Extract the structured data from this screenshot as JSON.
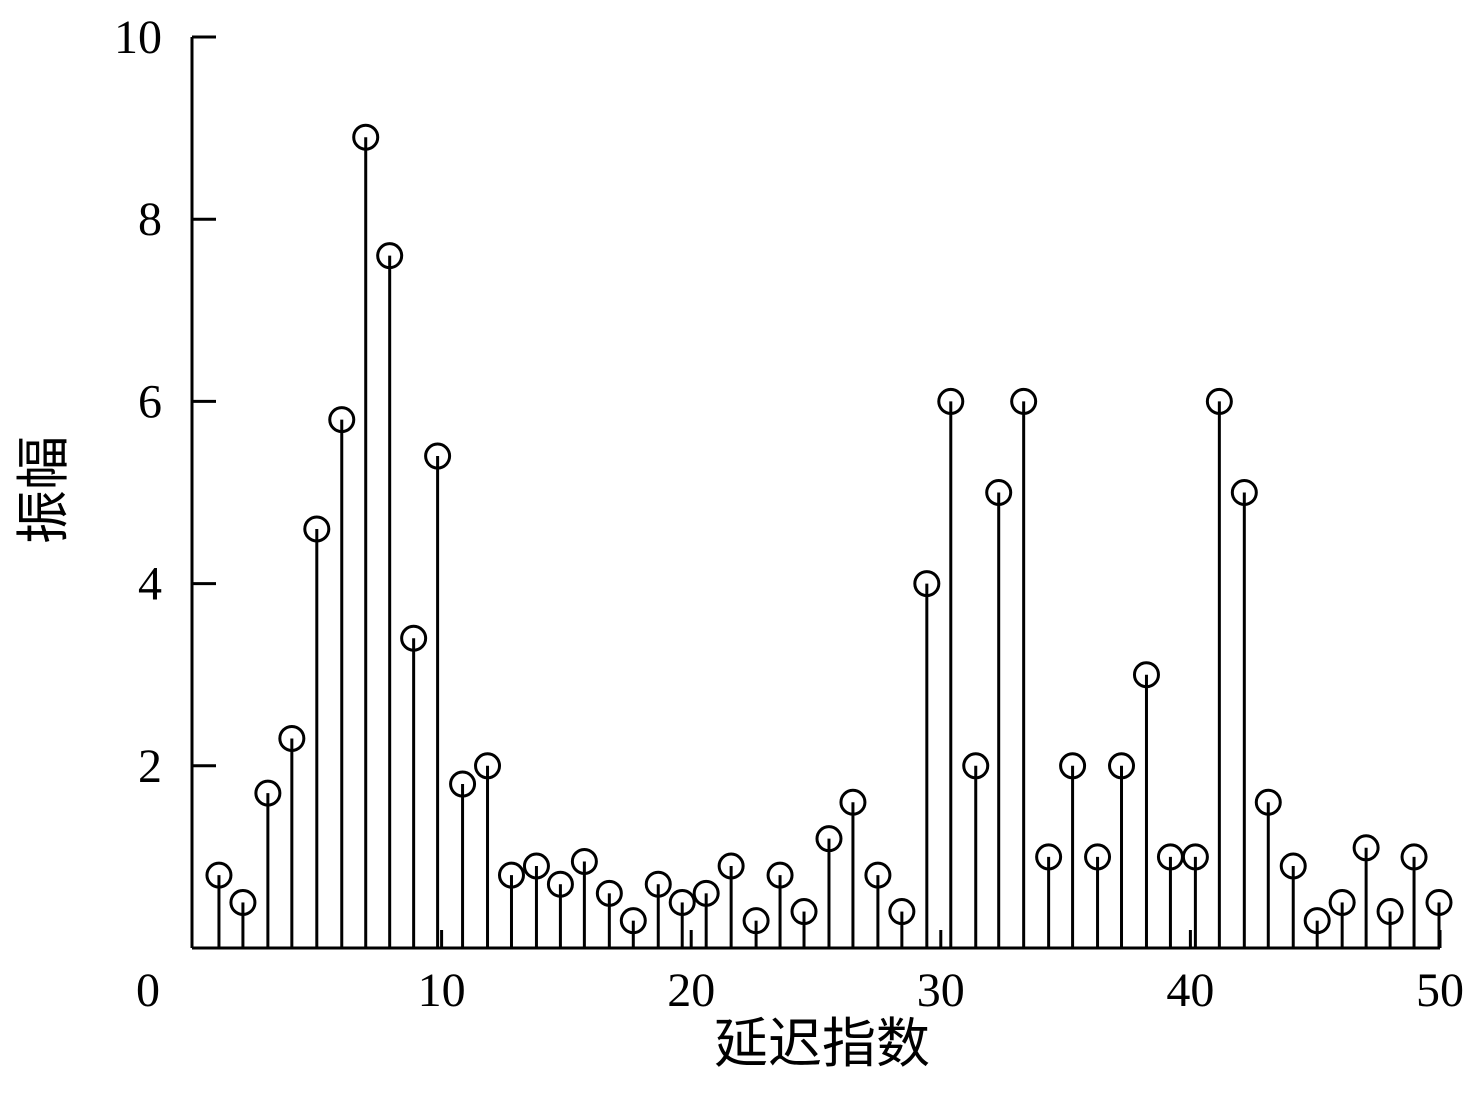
{
  "chart_data": {
    "type": "stem",
    "x_label": "延迟指数",
    "y_label": "振幅",
    "color": "#000000",
    "xlim": [
      0,
      50
    ],
    "ylim": [
      0,
      10
    ],
    "xticks": [
      10,
      20,
      30,
      40,
      50
    ],
    "yticks": [
      0,
      2,
      4,
      6,
      8,
      10
    ],
    "x": [
      1.08,
      2.04,
      3.04,
      4.0,
      5.0,
      6.0,
      6.96,
      7.92,
      8.88,
      9.84,
      10.84,
      11.84,
      12.8,
      13.8,
      14.76,
      15.72,
      16.72,
      17.68,
      18.68,
      19.64,
      20.6,
      21.6,
      22.6,
      23.56,
      24.52,
      25.52,
      26.48,
      27.48,
      28.44,
      29.44,
      30.4,
      31.4,
      32.32,
      33.32,
      34.32,
      35.28,
      36.28,
      37.24,
      38.24,
      39.2,
      40.2,
      41.16,
      42.16,
      43.12,
      44.12,
      45.08,
      46.08,
      47.04,
      48.0,
      48.96,
      49.96
    ],
    "values": [
      0.8,
      0.5,
      1.7,
      2.3,
      4.6,
      5.8,
      8.9,
      7.6,
      3.4,
      5.4,
      1.8,
      2.0,
      0.8,
      0.9,
      0.7,
      0.95,
      0.6,
      0.3,
      0.7,
      0.5,
      0.6,
      0.9,
      0.3,
      0.8,
      0.4,
      1.2,
      1.6,
      0.8,
      0.4,
      4.0,
      6.0,
      2.0,
      5.0,
      6.0,
      1.0,
      2.0,
      1.0,
      2.0,
      3.0,
      1.0,
      1.0,
      6.0,
      5.0,
      1.6,
      0.9,
      0.3,
      0.5,
      1.1,
      0.4,
      1.0,
      0.5
    ]
  }
}
